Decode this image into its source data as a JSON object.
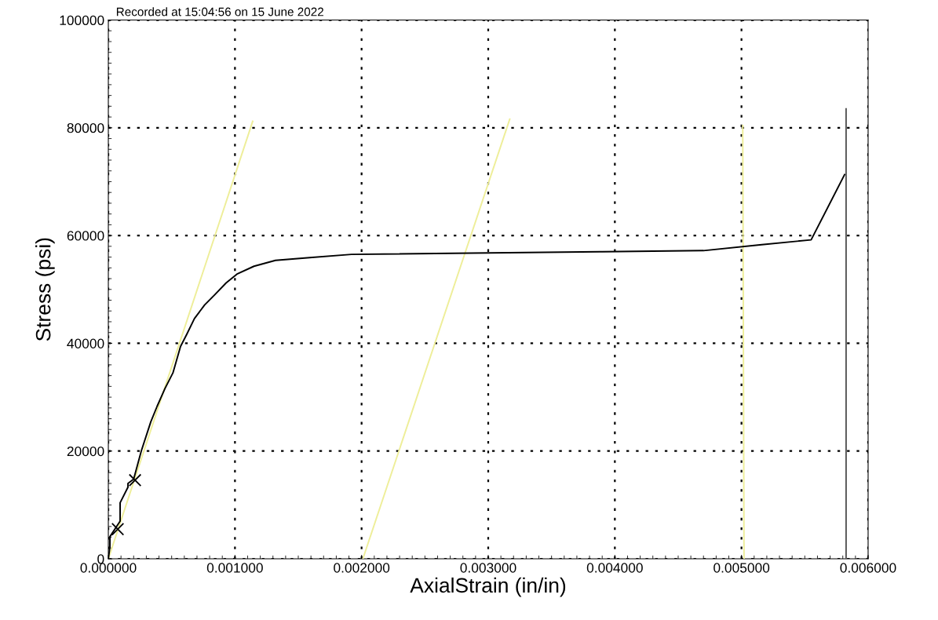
{
  "chart_data": {
    "type": "line",
    "xlabel": "AxialStrain (in/in)",
    "ylabel": "Stress (psi)",
    "annotations": [
      "Recorded at 15:04:56 on 15 June 2022"
    ],
    "xlim": [
      0,
      0.006
    ],
    "ylim": [
      0,
      100000
    ],
    "xticks": [
      {
        "value": 0,
        "label": "0.000000"
      },
      {
        "value": 0.001,
        "label": "0.001000"
      },
      {
        "value": 0.002,
        "label": "0.002000"
      },
      {
        "value": 0.003,
        "label": "0.003000"
      },
      {
        "value": 0.004,
        "label": "0.004000"
      },
      {
        "value": 0.005,
        "label": "0.005000"
      },
      {
        "value": 0.006,
        "label": "0.006000"
      }
    ],
    "yticks": [
      0,
      20000,
      40000,
      60000,
      80000,
      100000
    ],
    "grid": true,
    "line_style": "solid",
    "series": [
      {
        "color": "#eeee99",
        "x": [
          0,
          0.00114
        ],
        "values": [
          0,
          81200
        ]
      },
      {
        "color": "#eeee99",
        "x": [
          0.00201,
          0.00317
        ],
        "values": [
          0,
          81600
        ]
      },
      {
        "color": "#eeee99",
        "x": [
          0.00502,
          0.00501
        ],
        "values": [
          0,
          80400
        ]
      },
      {
        "color": "#000000",
        "x": [
          0,
          1.24e-05,
          1.24e-05,
          9.3e-05,
          9.3e-05,
          0.000155,
          0.000155,
          0.0002,
          0.00026,
          0.000335,
          0.000385,
          0.000447,
          0.00051,
          0.00057,
          0.00062,
          0.00068,
          0.00076,
          0.00084,
          0.00093,
          0.00102,
          0.00115,
          0.00132,
          0.00159,
          0.00192,
          0.0039,
          0.0047,
          0.00516,
          0.00555,
          0.005814
        ],
        "values": [
          0,
          2200,
          4100,
          7000,
          10400,
          13300,
          14000,
          14800,
          20000,
          25400,
          28300,
          31600,
          34500,
          39400,
          41700,
          44600,
          47100,
          49000,
          51200,
          52900,
          54300,
          55400,
          55900,
          56500,
          57000,
          57200,
          58300,
          59200,
          71300
        ]
      },
      {
        "color": "#555555",
        "x": [
          0.005826,
          0.005826
        ],
        "values": [
          0,
          83500
        ]
      },
      {
        "type": "scatter",
        "marker": "cross",
        "color": "#000000",
        "x": [
          7.45e-05,
          0.000211
        ],
        "values": [
          5500,
          14600
        ]
      }
    ]
  }
}
